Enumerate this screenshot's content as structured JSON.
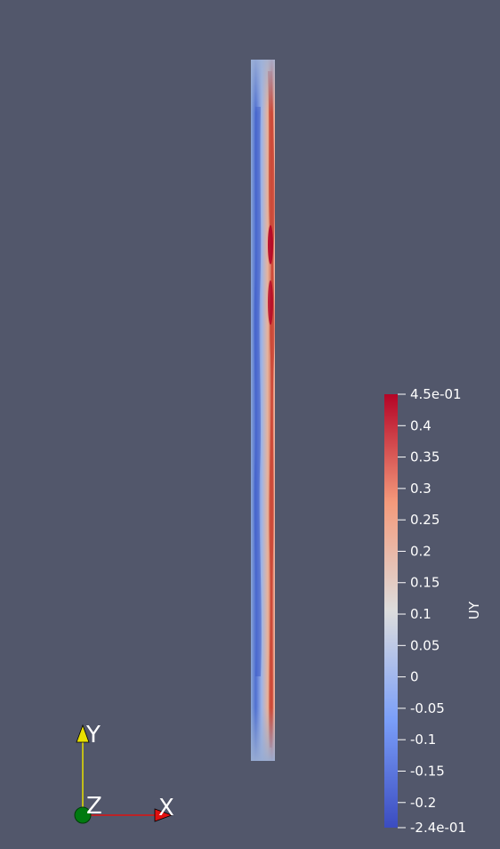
{
  "colorbar": {
    "title": "UY",
    "ticks": [
      "4.5e-01",
      "0.4",
      "0.35",
      "0.3",
      "0.25",
      "0.2",
      "0.15",
      "0.1",
      "0.05",
      "0",
      "-0.05",
      "-0.1",
      "-0.15",
      "-0.2",
      "-2.4e-01"
    ],
    "range": [
      -0.24,
      0.45
    ],
    "colormap": [
      "#3b4cc0",
      "#7b9ff9",
      "#dddddd",
      "#f49a7b",
      "#b40426"
    ]
  },
  "axes": {
    "x_label": "X",
    "y_label": "Y",
    "z_label": "Z",
    "x_color": "#e01010",
    "y_color": "#e8e000",
    "z_color": "#007a10"
  },
  "background_color": "#52576b"
}
